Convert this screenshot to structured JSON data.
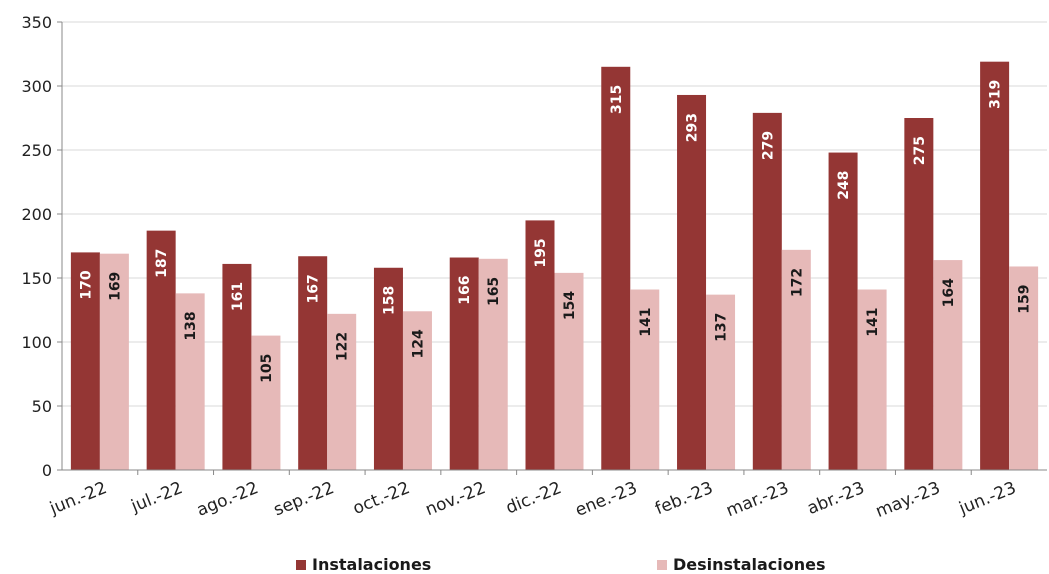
{
  "chart_data": {
    "type": "bar",
    "categories": [
      "jun.-22",
      "jul.-22",
      "ago.-22",
      "sep.-22",
      "oct.-22",
      "nov.-22",
      "dic.-22",
      "ene.-23",
      "feb.-23",
      "mar.-23",
      "abr.-23",
      "may.-23",
      "jun.-23"
    ],
    "series": [
      {
        "name": "Instalaciones",
        "color": "#943634",
        "values": [
          170,
          187,
          161,
          167,
          158,
          166,
          195,
          315,
          293,
          279,
          248,
          275,
          319
        ]
      },
      {
        "name": "Desinstalaciones",
        "color": "#E6B9B8",
        "values": [
          169,
          138,
          105,
          122,
          124,
          165,
          154,
          141,
          137,
          172,
          141,
          164,
          159
        ]
      }
    ],
    "yticks": [
      "0",
      "50",
      "100",
      "150",
      "200",
      "250",
      "300",
      "350"
    ],
    "ylim": [
      0,
      350
    ],
    "grid": true,
    "legend_position": "bottom"
  }
}
